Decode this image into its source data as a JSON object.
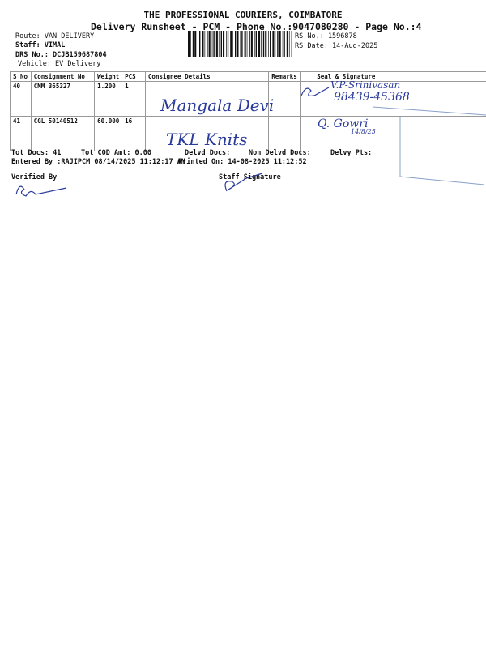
{
  "header": {
    "title": "THE PROFESSIONAL COURIERS, COIMBATORE",
    "subtitle": "Delivery Runsheet - PCM - Phone No.:9047080280 - Page No.:4",
    "route": "Route: VAN DELIVERY",
    "staff": "Staff: VIMAL",
    "drs": "DRS No.: DCJB159687804",
    "vehicle": "Vehicle: EV Delivery",
    "rs_no": "RS No.: 1596878",
    "rs_date": "RS Date: 14-Aug-2025"
  },
  "table": {
    "columns": [
      "S No",
      "Consignment No",
      "Weight",
      "PCS",
      "Consignee Details",
      "Remarks",
      "Seal & Signature"
    ],
    "rows": [
      {
        "sno": "40",
        "consignment": "CMM 365327",
        "weight": "1.200",
        "pcs": "1",
        "consignee_handwritten": "Mangala Devi",
        "signature_handwritten": "V.P-Srinivasan",
        "phone_handwritten": "98439-45368"
      },
      {
        "sno": "41",
        "consignment": "CGL 50140512",
        "weight": "60.000",
        "pcs": "16",
        "consignee_handwritten": "TKL Knits",
        "signature_handwritten": "Q. Gowri",
        "date_handwritten": "14/8/25"
      }
    ]
  },
  "footer": {
    "tot_docs": "Tot Docs:  41",
    "tot_cod": "Tot COD Amt:    0.00",
    "delvd": "Delvd Docs:",
    "non_delvd": "Non Delvd Docs:",
    "delvy_pts": "Delvy Pts:",
    "entered_by": "Entered By :RAJIPCM 08/14/2025 11:12:17 AM",
    "printed_on": "Printed On: 14-08-2025 11:12:52",
    "verified_by": "Verified By",
    "staff_signature": "Staff Signature"
  }
}
